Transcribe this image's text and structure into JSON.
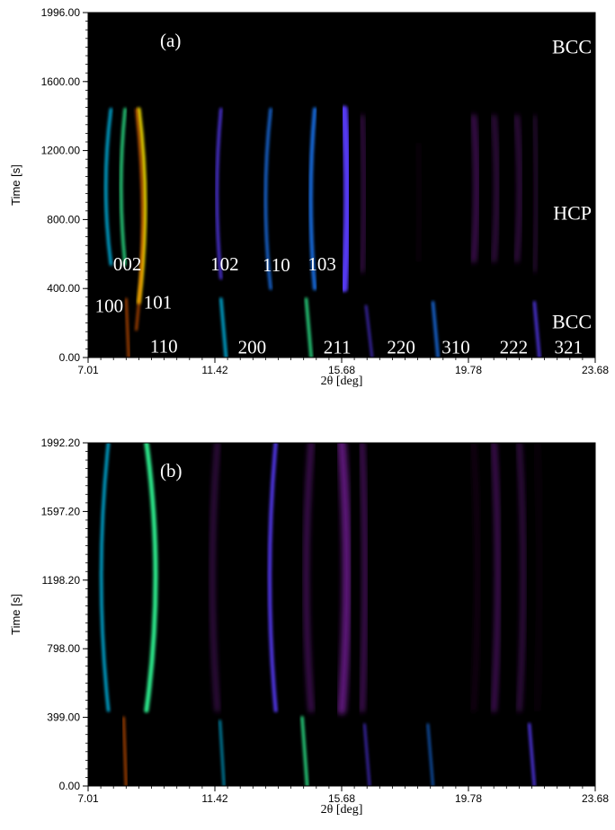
{
  "figure": {
    "chart_data": [
      {
        "type": "heatmap",
        "panel_label": "(a)",
        "xlabel": "2θ [deg]",
        "ylabel": "Time [s]",
        "xlim": [
          7.01,
          23.68
        ],
        "ylim": [
          0,
          1996
        ],
        "xticks": [
          "7.01",
          "11.42",
          "15.68",
          "19.78",
          "23.68"
        ],
        "yticks": [
          "0.00",
          "400.00",
          "800.00",
          "1200.00",
          "1600.00",
          "1996.00"
        ],
        "phase_labels": [
          {
            "text": "BCC",
            "time": 1800
          },
          {
            "text": "HCP",
            "time": 840
          },
          {
            "text": "BCC",
            "time": 210
          }
        ],
        "peak_labels": [
          {
            "text": "100",
            "x": 7.7,
            "time": 305
          },
          {
            "text": "002",
            "x": 8.3,
            "time": 545
          },
          {
            "text": "101",
            "x": 9.3,
            "time": 325
          },
          {
            "text": "102",
            "x": 11.5,
            "time": 545
          },
          {
            "text": "110",
            "x": 13.2,
            "time": 540
          },
          {
            "text": "103",
            "x": 14.7,
            "time": 545
          },
          {
            "text": "110",
            "x": 9.5,
            "time": 70
          },
          {
            "text": "200",
            "x": 12.4,
            "time": 65
          },
          {
            "text": "211",
            "x": 15.2,
            "time": 65
          },
          {
            "text": "220",
            "x": 17.3,
            "time": 65
          },
          {
            "text": "310",
            "x": 19.1,
            "time": 65
          },
          {
            "text": "222",
            "x": 21.0,
            "time": 65
          },
          {
            "text": "321",
            "x": 22.8,
            "time": 65
          }
        ]
      },
      {
        "type": "heatmap",
        "panel_label": "(b)",
        "xlabel": "2θ [deg]",
        "ylabel": "Time [s]",
        "xlim": [
          7.01,
          23.68
        ],
        "ylim": [
          0,
          1992.2
        ],
        "xticks": [
          "7.01",
          "11.42",
          "15.68",
          "19.78",
          "23.68"
        ],
        "yticks": [
          "0.00",
          "399.00",
          "798.00",
          "1198.20",
          "1597.20",
          "1992.20"
        ]
      }
    ],
    "colors": {
      "background": "#000000",
      "colormap": [
        "#2a002a",
        "#6a1a8a",
        "#5a3cff",
        "#1a7bff",
        "#00ccff",
        "#33ff99",
        "#ffee00",
        "#ff6600"
      ]
    }
  }
}
